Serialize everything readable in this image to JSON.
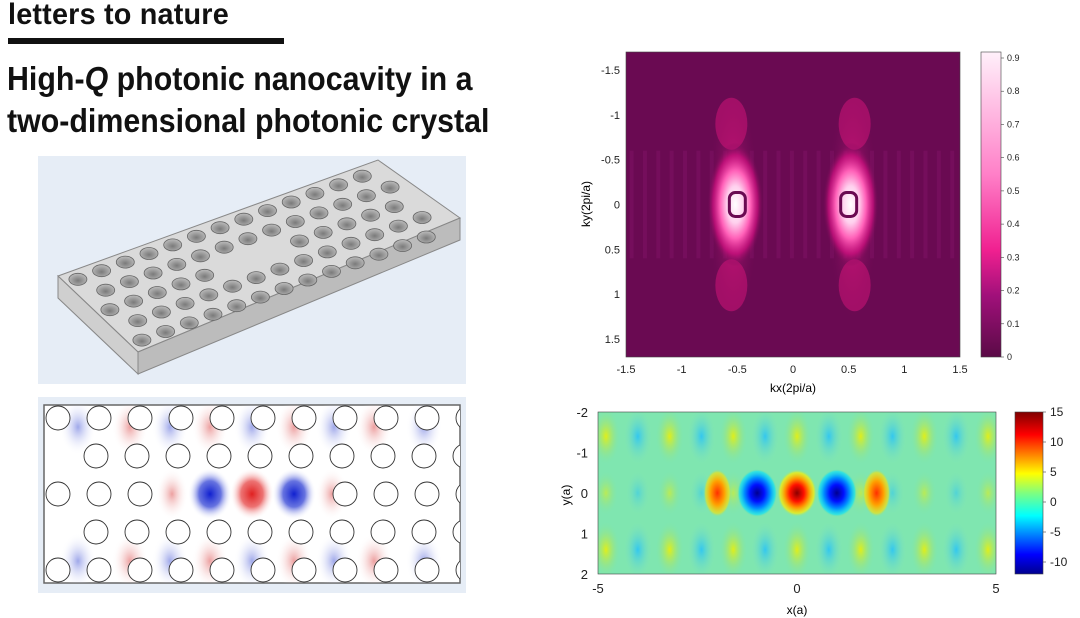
{
  "header": {
    "section_label": "letters to nature",
    "title_prefix": "High-",
    "title_q": "Q",
    "title_rest_line1": " photonic nanocavity in a",
    "title_line2": "two-dimensional photonic crystal"
  },
  "figures": {
    "slab_3d": {
      "description_name": "photonic crystal slab with missing holes"
    },
    "field_map": {
      "description_name": "cavity mode field distribution"
    }
  },
  "colors": {
    "slab_bg": "#e6edf6",
    "slab_top": "#dcdcdc",
    "field_red": "#e03030",
    "field_blue": "#2030d0",
    "magenta_bg": "#6a0a52"
  },
  "chart_data": [
    {
      "type": "heatmap",
      "name": "far-field momentum distribution",
      "xlabel": "kx(2pi/a)",
      "ylabel": "ky(2pi/a)",
      "xlim": [
        -1.5,
        1.5
      ],
      "ylim": [
        -1.7,
        1.7
      ],
      "y_reversed": true,
      "x_ticks": [
        "-1.5",
        "-1",
        "-0.5",
        "0",
        "0.5",
        "1",
        "1.5"
      ],
      "y_ticks": [
        "-1.5",
        "-1",
        "-0.5",
        "0",
        "0.5",
        "1",
        "1.5"
      ],
      "colorbar_ticks": [
        "0",
        "0.1",
        "0.2",
        "0.3",
        "0.4",
        "0.5",
        "0.6",
        "0.7",
        "0.8",
        "0.9"
      ],
      "colorbar_range": [
        0,
        0.9
      ],
      "colormap": "magenta",
      "features": [
        {
          "kx": -0.5,
          "ky": 0,
          "peak": 0.9
        },
        {
          "kx": 0.5,
          "ky": 0,
          "peak": 0.9
        }
      ]
    },
    {
      "type": "heatmap",
      "name": "real-space field",
      "xlabel": "x(a)",
      "ylabel": "y(a)",
      "xlim": [
        -5,
        5
      ],
      "ylim": [
        -2,
        2
      ],
      "y_reversed": true,
      "x_ticks": [
        "-5",
        "0",
        "5"
      ],
      "y_ticks": [
        "-2",
        "-1",
        "0",
        "1",
        "2"
      ],
      "colorbar_ticks": [
        "15",
        "10",
        "5",
        "0",
        "-5",
        "-10"
      ],
      "colorbar_range": [
        -12,
        15
      ],
      "colormap": "jet",
      "lobes": [
        {
          "x": -2.0,
          "value": 6
        },
        {
          "x": -1.0,
          "value": -12
        },
        {
          "x": 0,
          "value": 15
        },
        {
          "x": 1.0,
          "value": -12
        },
        {
          "x": 2.0,
          "value": 6
        }
      ]
    }
  ]
}
